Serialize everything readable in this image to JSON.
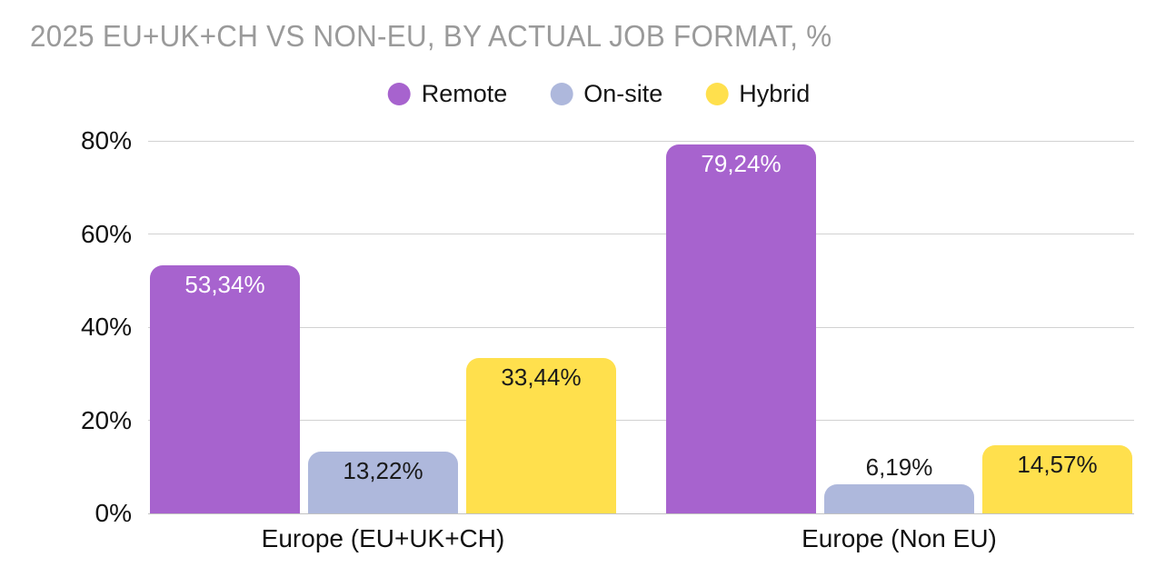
{
  "title": "2025 EU+UK+CH VS NON-EU, BY ACTUAL JOB FORMAT, %",
  "chart_data": {
    "type": "bar",
    "title": "2025 EU+UK+CH VS NON-EU, BY ACTUAL JOB FORMAT, %",
    "categories": [
      "Europe (EU+UK+CH)",
      "Europe (Non EU)"
    ],
    "series": [
      {
        "name": "Remote",
        "color": "#a763ce",
        "value_text_color": "#ffffff",
        "values": [
          53.34,
          79.24
        ],
        "value_labels": [
          "53,34%",
          "79,24%"
        ]
      },
      {
        "name": "On-site",
        "color": "#aeb8dc",
        "value_text_color": "#1a1a1a",
        "values": [
          13.22,
          6.19
        ],
        "value_labels": [
          "13,22%",
          "6,19%"
        ]
      },
      {
        "name": "Hybrid",
        "color": "#ffe04d",
        "value_text_color": "#1a1a1a",
        "values": [
          33.44,
          14.57
        ],
        "value_labels": [
          "33,44%",
          "14,57%"
        ]
      }
    ],
    "xlabel": "",
    "ylabel": "",
    "ylim": [
      0,
      80
    ],
    "yticks": [
      {
        "value": 0,
        "label": "0%"
      },
      {
        "value": 20,
        "label": "20%"
      },
      {
        "value": 40,
        "label": "40%"
      },
      {
        "value": 60,
        "label": "60%"
      },
      {
        "value": 80,
        "label": "80%"
      }
    ],
    "grid": true,
    "legend_position": "top-center",
    "decimal_separator": ","
  },
  "colors": {
    "title_text": "#9a9a9a",
    "axis_text": "#111111",
    "category_text": "#111111",
    "gridline": "#d2d2d2",
    "baseline": "#c2c2c2",
    "background": "#ffffff"
  }
}
